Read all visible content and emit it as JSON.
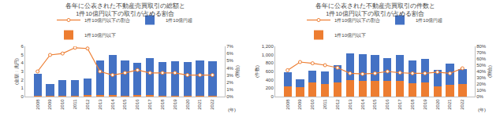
{
  "chart_data": [
    {
      "type": "bar",
      "title": "各年に公表された不動産売買取引の総額と\n1件10億円以下の取引が占める割合",
      "x_label": "(年)",
      "y_label": "(金額：兆円)",
      "y2_label": "(割合)",
      "categories": [
        "2008",
        "2009",
        "2010",
        "2011",
        "2012",
        "2013",
        "2014",
        "2015",
        "2016",
        "2017",
        "2018",
        "2019",
        "2020",
        "2021",
        "2022"
      ],
      "series": [
        {
          "name": "1件10億円以下",
          "type": "bar",
          "color": "#ed7d31",
          "values": [
            0.09,
            0.09,
            0.12,
            0.14,
            0.15,
            0.15,
            0.15,
            0.14,
            0.15,
            0.15,
            0.14,
            0.14,
            0.12,
            0.13,
            0.13
          ]
        },
        {
          "name": "1件10億円超",
          "type": "bar",
          "color": "#4472c4",
          "values": [
            2.61,
            1.41,
            1.88,
            1.86,
            2.05,
            4.15,
            4.85,
            4.16,
            3.85,
            4.45,
            3.96,
            4.06,
            3.98,
            4.17,
            4.07
          ]
        },
        {
          "name": "1件10億円以下の割合",
          "type": "line",
          "axis": "y2",
          "color": "#ed7d31",
          "marker": "circle",
          "line_style": "solid",
          "values": [
            3.5,
            5.8,
            6.0,
            6.8,
            6.7,
            3.5,
            3.0,
            3.3,
            3.7,
            3.3,
            3.3,
            3.3,
            3.0,
            3.0,
            3.0
          ]
        }
      ],
      "ylim": [
        0,
        6
      ],
      "yticks": [
        0,
        1,
        2,
        3,
        4,
        5,
        6
      ],
      "y2lim": [
        0,
        7
      ],
      "y2ticks": [
        {
          "value": 0,
          "label": "0%"
        },
        {
          "value": 1,
          "label": "1%"
        },
        {
          "value": 2,
          "label": "2%"
        },
        {
          "value": 3,
          "label": "3%"
        },
        {
          "value": 4,
          "label": "4%"
        },
        {
          "value": 5,
          "label": "5%"
        },
        {
          "value": 6,
          "label": "6%"
        },
        {
          "value": 7,
          "label": "7%"
        }
      ],
      "stacked": true,
      "grid": false,
      "legend": "top"
    },
    {
      "type": "bar",
      "title": "各年に公表された不動産売買取引の件数と\n1件10億円以下の取引が占める割合",
      "x_label": "(年)",
      "y_label": "(件数)",
      "y2_label": "(割合)",
      "categories": [
        "2008",
        "2009",
        "2010",
        "2011",
        "2012",
        "2013",
        "2014",
        "2015",
        "2016",
        "2017",
        "2018",
        "2019",
        "2020",
        "2021",
        "2022"
      ],
      "series": [
        {
          "name": "1件10億円以下",
          "type": "bar",
          "color": "#ed7d31",
          "values": [
            250,
            230,
            340,
            300,
            340,
            390,
            370,
            370,
            370,
            380,
            320,
            330,
            250,
            290,
            300
          ]
        },
        {
          "name": "1件10億円超",
          "type": "bar",
          "color": "#4472c4",
          "values": [
            340,
            190,
            280,
            300,
            410,
            650,
            650,
            630,
            550,
            620,
            550,
            570,
            390,
            490,
            360
          ]
        },
        {
          "name": "1件10億円以下の割合",
          "type": "line",
          "axis": "y2",
          "color": "#ed7d31",
          "marker": "circle",
          "line_style": "solid",
          "values": [
            42,
            55,
            53,
            50,
            46,
            37,
            36,
            37,
            40,
            38,
            37,
            37,
            39,
            37,
            45
          ]
        }
      ],
      "ylim": [
        0,
        1200
      ],
      "yticks": [
        0,
        200,
        400,
        600,
        800,
        {
          "value": 1000,
          "label": "1,000"
        },
        {
          "value": 1200,
          "label": "1,200"
        }
      ],
      "y2lim": [
        0,
        80
      ],
      "y2ticks": [
        {
          "value": 0,
          "label": "0%"
        },
        {
          "value": 10,
          "label": "10%"
        },
        {
          "value": 20,
          "label": "20%"
        },
        {
          "value": 30,
          "label": "30%"
        },
        {
          "value": 40,
          "label": "40%"
        },
        {
          "value": 50,
          "label": "50%"
        },
        {
          "value": 60,
          "label": "60%"
        },
        {
          "value": 70,
          "label": "70%"
        },
        {
          "value": 80,
          "label": "80%"
        }
      ],
      "stacked": true,
      "grid": false,
      "legend": "top"
    }
  ]
}
